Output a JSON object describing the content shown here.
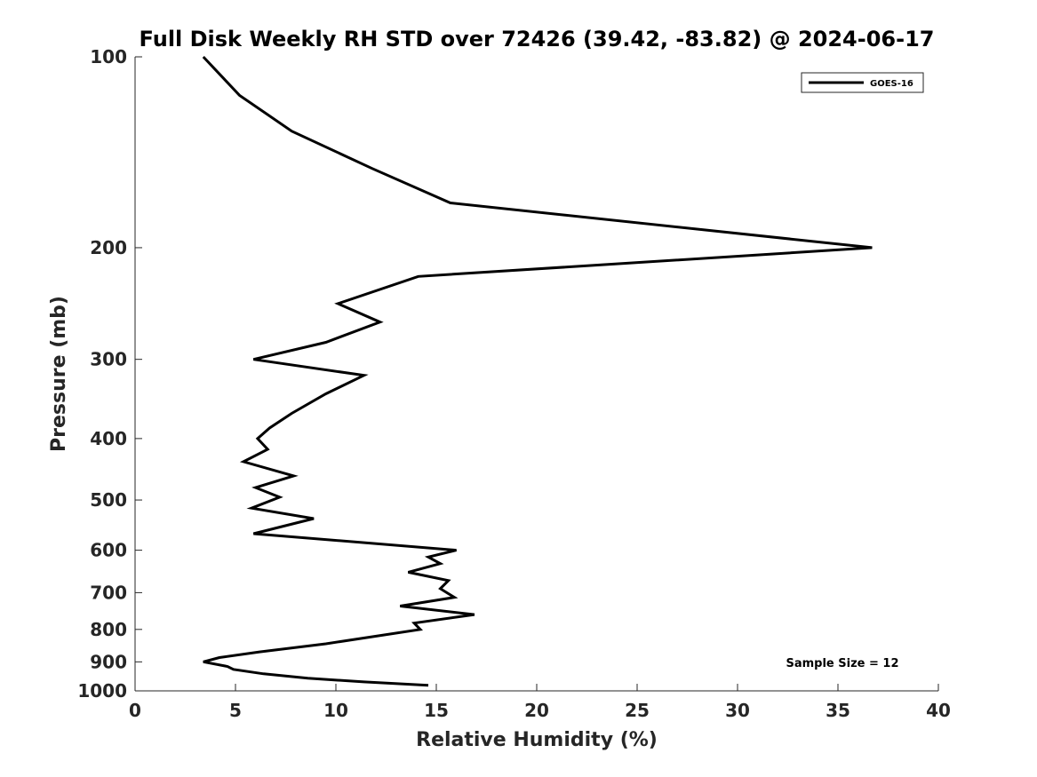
{
  "chart_data": {
    "type": "line",
    "title": "Full Disk Weekly RH STD over 72426 (39.42, -83.82) @ 2024-06-17",
    "xlabel": "Relative Humidity (%)",
    "ylabel": "Pressure (mb)",
    "xlim": [
      0,
      40
    ],
    "ylim": [
      100,
      1000
    ],
    "yscale": "log",
    "yreversed": true,
    "xticks": [
      0,
      5,
      10,
      15,
      20,
      25,
      30,
      35,
      40
    ],
    "yticks": [
      100,
      200,
      300,
      400,
      500,
      600,
      700,
      800,
      900,
      1000
    ],
    "grid": false,
    "legend": {
      "placement": "top-right",
      "entries": [
        "GOES-16"
      ]
    },
    "annotation": "Sample Size = 12",
    "series": [
      {
        "name": "GOES-16",
        "color": "#000000",
        "points": [
          [
            3.4,
            100
          ],
          [
            5.2,
            115
          ],
          [
            7.8,
            131
          ],
          [
            11.8,
            150
          ],
          [
            15.7,
            170
          ],
          [
            36.7,
            200
          ],
          [
            14.1,
            222
          ],
          [
            10.1,
            245
          ],
          [
            12.2,
            262
          ],
          [
            9.5,
            282
          ],
          [
            5.9,
            300
          ],
          [
            11.4,
            318
          ],
          [
            9.5,
            340
          ],
          [
            7.8,
            365
          ],
          [
            6.7,
            385
          ],
          [
            6.1,
            400
          ],
          [
            6.6,
            416
          ],
          [
            5.4,
            435
          ],
          [
            7.9,
            458
          ],
          [
            6.0,
            478
          ],
          [
            7.2,
            495
          ],
          [
            5.8,
            515
          ],
          [
            8.9,
            535
          ],
          [
            5.9,
            565
          ],
          [
            16.0,
            600
          ],
          [
            14.6,
            615
          ],
          [
            15.2,
            630
          ],
          [
            13.6,
            650
          ],
          [
            15.6,
            670
          ],
          [
            15.2,
            690
          ],
          [
            15.9,
            712
          ],
          [
            13.2,
            735
          ],
          [
            16.9,
            758
          ],
          [
            13.9,
            782
          ],
          [
            14.2,
            800
          ],
          [
            9.5,
            843
          ],
          [
            6.2,
            868
          ],
          [
            4.2,
            886
          ],
          [
            3.4,
            900
          ],
          [
            4.6,
            915
          ],
          [
            4.9,
            925
          ],
          [
            6.4,
            940
          ],
          [
            8.6,
            955
          ],
          [
            11.4,
            968
          ],
          [
            14.6,
            980
          ]
        ]
      }
    ]
  }
}
